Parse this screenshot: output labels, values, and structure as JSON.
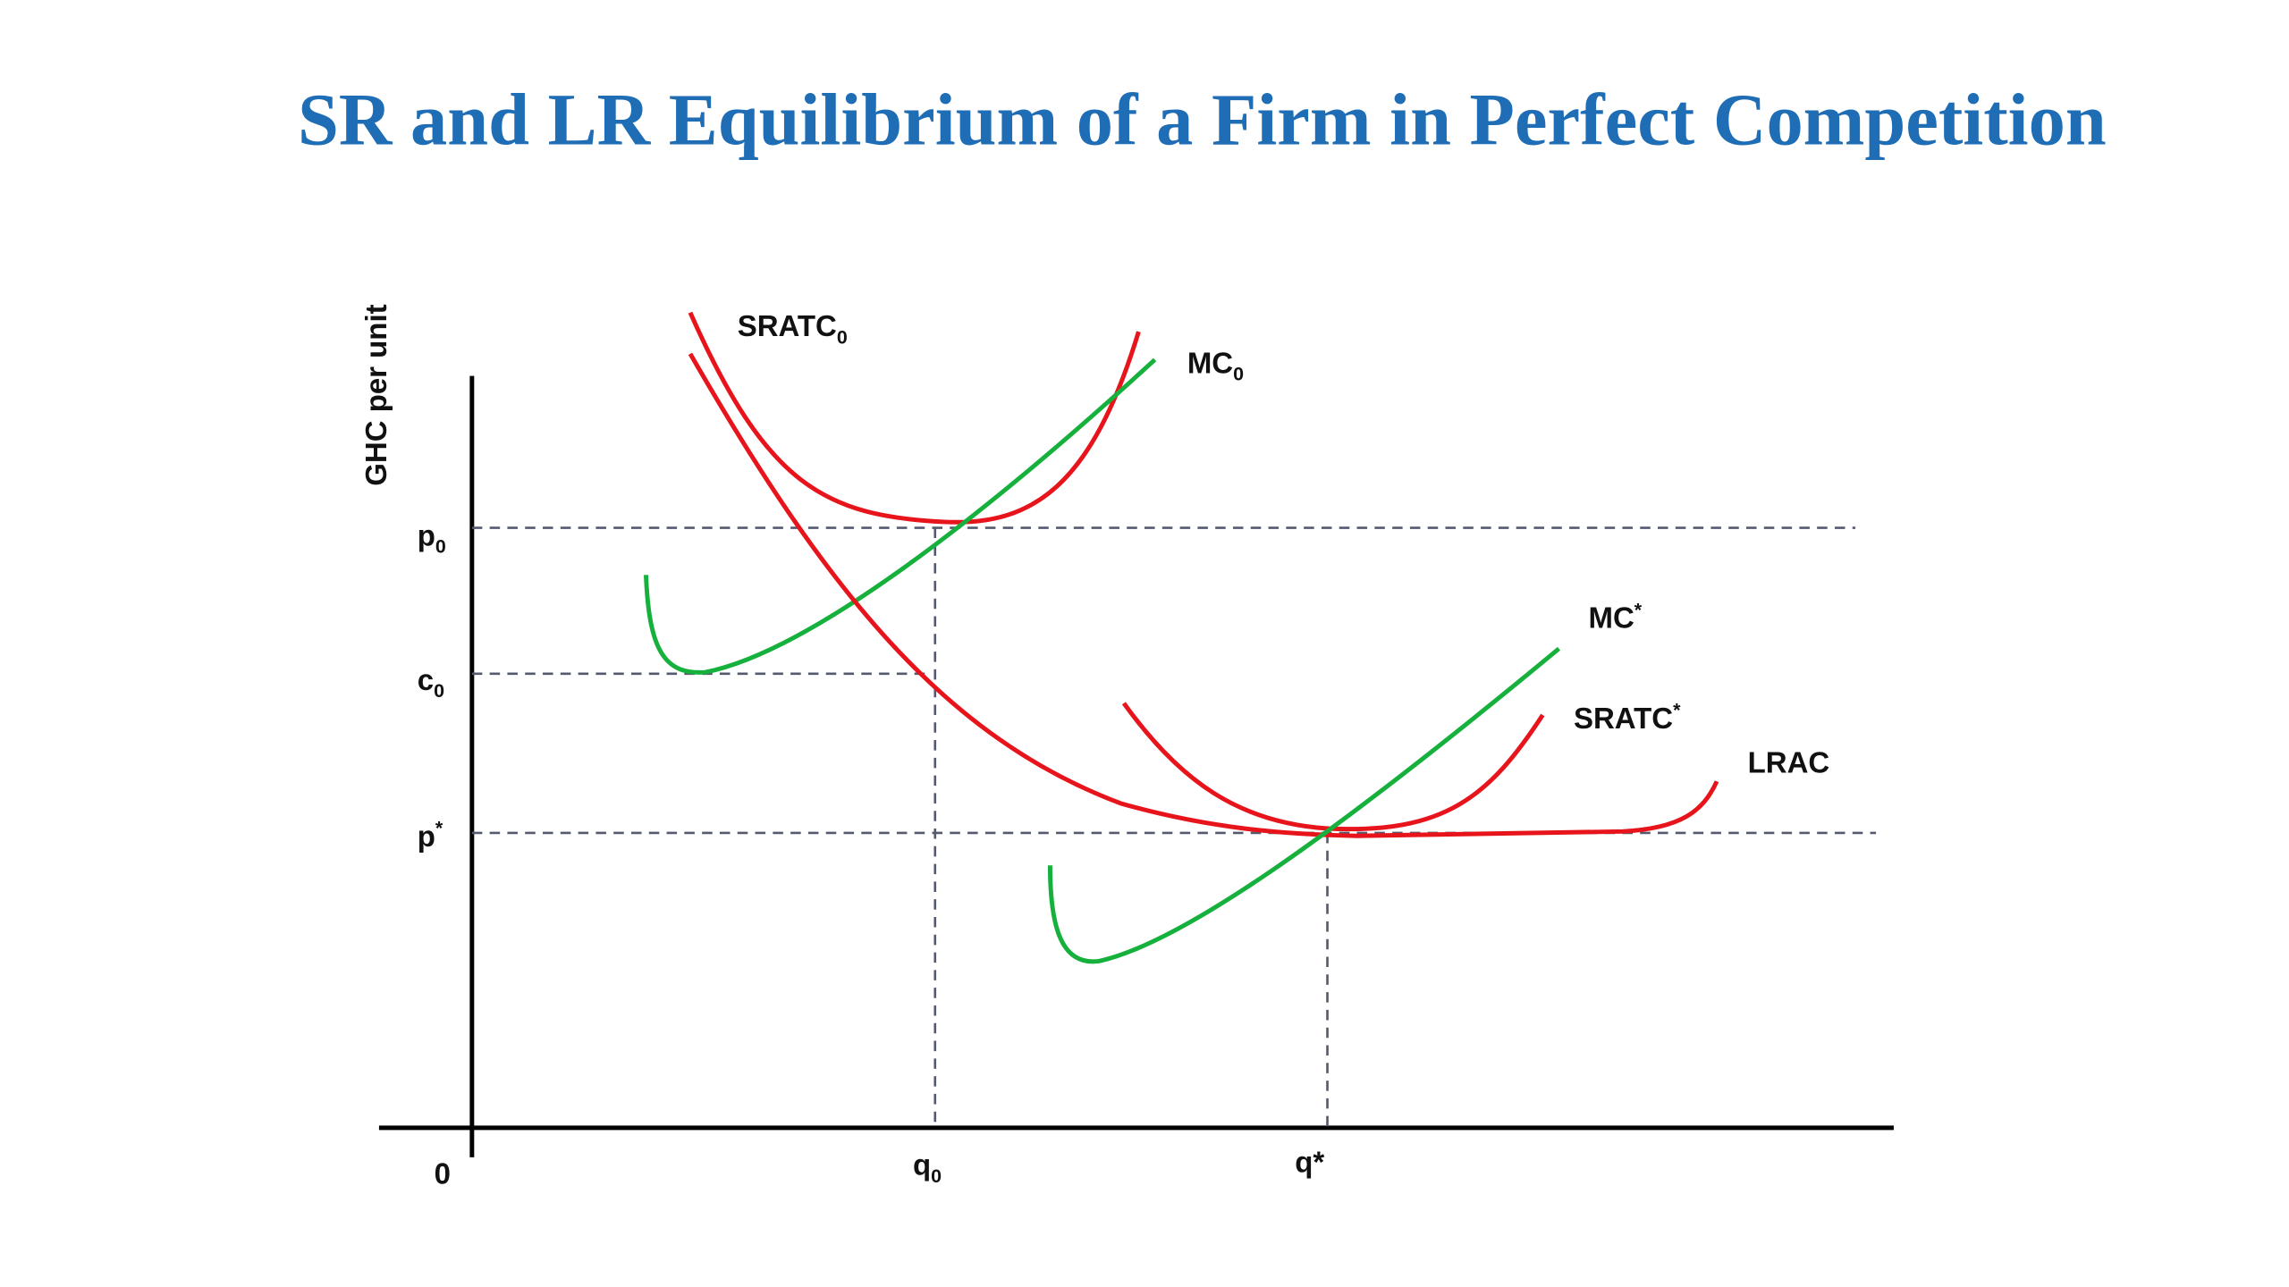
{
  "title": "SR and LR Equilibrium of a Firm in Perfect Competition",
  "y_axis_label": "GHC per unit",
  "origin": "0",
  "y_ticks": [
    {
      "text": "p",
      "sub": "0"
    },
    {
      "text": "c",
      "sub": "0"
    },
    {
      "text": "p",
      "sup": "*"
    }
  ],
  "x_ticks": [
    {
      "text": "q",
      "sub": "0"
    },
    {
      "text": "q*"
    }
  ],
  "curves": [
    {
      "text": "SRATC",
      "sub": "0"
    },
    {
      "text": "MC",
      "sub": "0"
    },
    {
      "text": "MC",
      "sup": "*"
    },
    {
      "text": "SRATC",
      "sup": "*"
    },
    {
      "text": "LRAC"
    }
  ]
}
